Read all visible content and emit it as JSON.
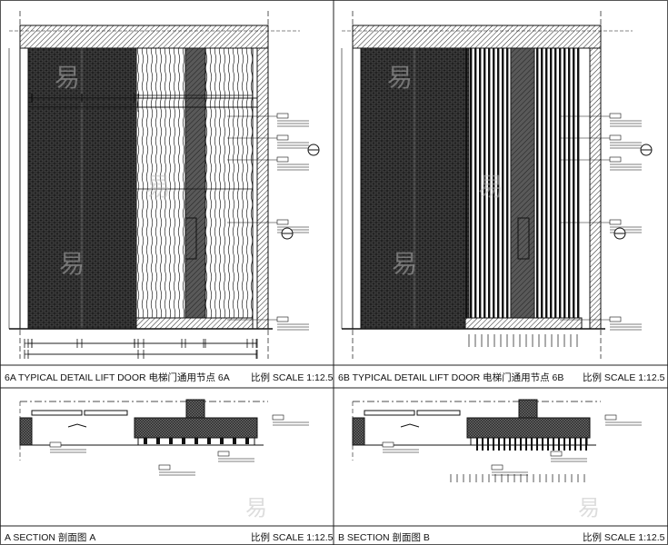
{
  "panels": [
    {
      "id": "6A",
      "title": "6A  TYPICAL DETAIL LIFT DOOR   电梯门通用节点 6A",
      "scale": "比例  SCALE   1:12.5",
      "type": "elevation",
      "infill": "wood-veneer"
    },
    {
      "id": "6B",
      "title": "6B  TYPICAL DETAIL LIFT DOOR  电梯门通用节点 6B",
      "scale": "比例  SCALE   1:12.5",
      "type": "elevation",
      "infill": "vertical-fins"
    },
    {
      "id": "A",
      "title": "A   SECTION  剖面图 A",
      "scale": "比例  SCALE   1:12.5",
      "type": "section"
    },
    {
      "id": "B",
      "title": "B   SECTION  剖面图 B",
      "scale": "比例  SCALE   1:12.5",
      "type": "section"
    }
  ],
  "watermark": "易",
  "colors": {
    "line": "#111111",
    "door": "#1a1a1a",
    "frame": "#888888"
  }
}
